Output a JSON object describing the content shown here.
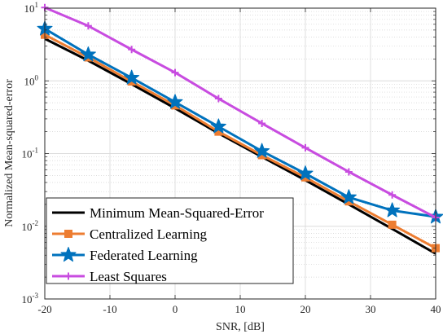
{
  "chart_data": {
    "type": "line",
    "xlabel": "SNR, [dB]",
    "ylabel": "Normalized Mean-squared-error",
    "xlim": [
      -20,
      40
    ],
    "ylim": [
      0.001,
      10
    ],
    "yscale": "log",
    "grid": true,
    "minor_grid": true,
    "legend_position": "bottom-left",
    "x_ticks": [
      {
        "value": -20,
        "label": "-20"
      },
      {
        "value": -10,
        "label": "-10"
      },
      {
        "value": 0,
        "label": "0"
      },
      {
        "value": 10,
        "label": "10"
      },
      {
        "value": 20,
        "label": "20"
      },
      {
        "value": 30,
        "label": "30"
      },
      {
        "value": 40,
        "label": "40"
      }
    ],
    "y_ticks": [
      {
        "value": 0.001,
        "base": "10",
        "exp": "-3"
      },
      {
        "value": 0.01,
        "base": "10",
        "exp": "-2"
      },
      {
        "value": 0.1,
        "base": "10",
        "exp": "-1"
      },
      {
        "value": 1,
        "base": "10",
        "exp": "0"
      },
      {
        "value": 10,
        "base": "10",
        "exp": "1"
      }
    ],
    "series": [
      {
        "name": "Minimum Mean-Squared-Error",
        "color": "#000000",
        "marker": "none",
        "x": [
          -20,
          -13.33,
          -6.67,
          0,
          6.67,
          13.33,
          20,
          26.67,
          33.33,
          40
        ],
        "y": [
          3.8,
          1.9,
          0.9,
          0.42,
          0.19,
          0.09,
          0.043,
          0.02,
          0.0092,
          0.0042
        ]
      },
      {
        "name": "Centralized Learning",
        "color": "#ED7D31",
        "marker": "square",
        "x": [
          -20,
          -13.33,
          -6.67,
          0,
          6.67,
          13.33,
          20,
          26.67,
          33.33,
          40
        ],
        "y": [
          4.3,
          2.1,
          0.98,
          0.46,
          0.2,
          0.095,
          0.047,
          0.022,
          0.0105,
          0.005
        ]
      },
      {
        "name": "Federated Learning",
        "color": "#0072BD",
        "marker": "star",
        "x": [
          -20,
          -13.33,
          -6.67,
          0,
          6.67,
          13.33,
          20,
          26.67,
          33.33,
          40
        ],
        "y": [
          5.2,
          2.3,
          1.1,
          0.51,
          0.235,
          0.108,
          0.053,
          0.025,
          0.0165,
          0.0135
        ]
      },
      {
        "name": "Least Squares",
        "color": "#C84CE0",
        "marker": "plus",
        "x": [
          -20,
          -13.33,
          -6.67,
          0,
          6.67,
          13.33,
          20,
          26.67,
          33.33,
          40
        ],
        "y": [
          10.2,
          5.7,
          2.7,
          1.3,
          0.57,
          0.26,
          0.12,
          0.056,
          0.027,
          0.0132
        ]
      }
    ]
  }
}
